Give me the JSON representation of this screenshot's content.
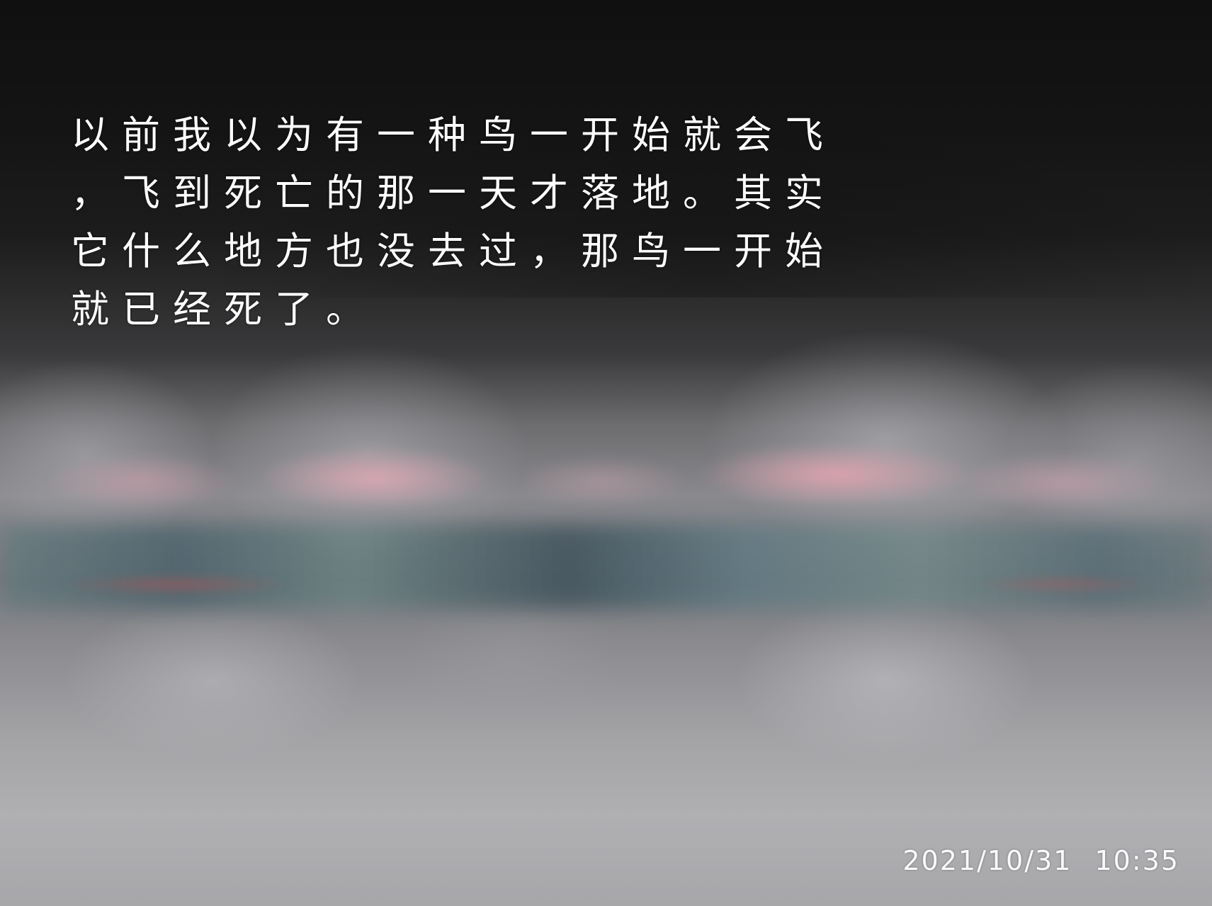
{
  "caption": {
    "lines": [
      "以前我以为有一种鸟一开始就会飞",
      "，飞到死亡的那一天才落地。其实",
      "它什么地方也没去过，那鸟一开始",
      "就已经死了。"
    ]
  },
  "timestamp": {
    "date": "2021/10/31",
    "time": "10:35"
  }
}
